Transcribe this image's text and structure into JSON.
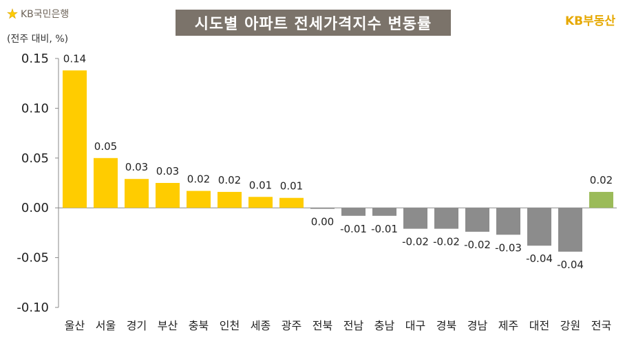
{
  "header": {
    "brand_left_text": "KB국민은행",
    "title": "시도별 아파트 전세가격지수 변동률",
    "brand_right_text": "KB부동산",
    "unit_label": "(전주 대비, %)"
  },
  "colors": {
    "positive": "#FFCC00",
    "negative": "#8C8C8C",
    "national": "#9BBB59",
    "title_bg": "#7B736A",
    "brand_accent": "#E6A800"
  },
  "chart_data": {
    "type": "bar",
    "title": "시도별 아파트 전세가격지수 변동률",
    "ylabel": "(전주 대비, %)",
    "xlabel": "",
    "ylim": [
      -0.1,
      0.15
    ],
    "yticks": [
      0.15,
      0.1,
      0.05,
      0.0,
      -0.05,
      -0.1
    ],
    "ytick_labels": [
      "0.15",
      "0.10",
      "0.05",
      "0.00",
      "-0.05",
      "-0.10"
    ],
    "grid": false,
    "categories": [
      "울산",
      "서울",
      "경기",
      "부산",
      "충북",
      "인천",
      "세종",
      "광주",
      "전북",
      "전남",
      "충남",
      "대구",
      "경북",
      "경남",
      "제주",
      "대전",
      "강원",
      "전국"
    ],
    "values": [
      0.138,
      0.05,
      0.029,
      0.025,
      0.017,
      0.016,
      0.011,
      0.01,
      -0.001,
      -0.008,
      -0.008,
      -0.021,
      -0.021,
      -0.024,
      -0.027,
      -0.038,
      -0.044,
      0.016
    ],
    "value_labels": [
      "0.14",
      "0.05",
      "0.03",
      "0.03",
      "0.02",
      "0.02",
      "0.01",
      "0.01",
      "0.00",
      "-0.01",
      "-0.01",
      "-0.02",
      "-0.02",
      "-0.02",
      "-0.03",
      "-0.04",
      "-0.04",
      "0.02"
    ],
    "highlight_category": "전국"
  }
}
